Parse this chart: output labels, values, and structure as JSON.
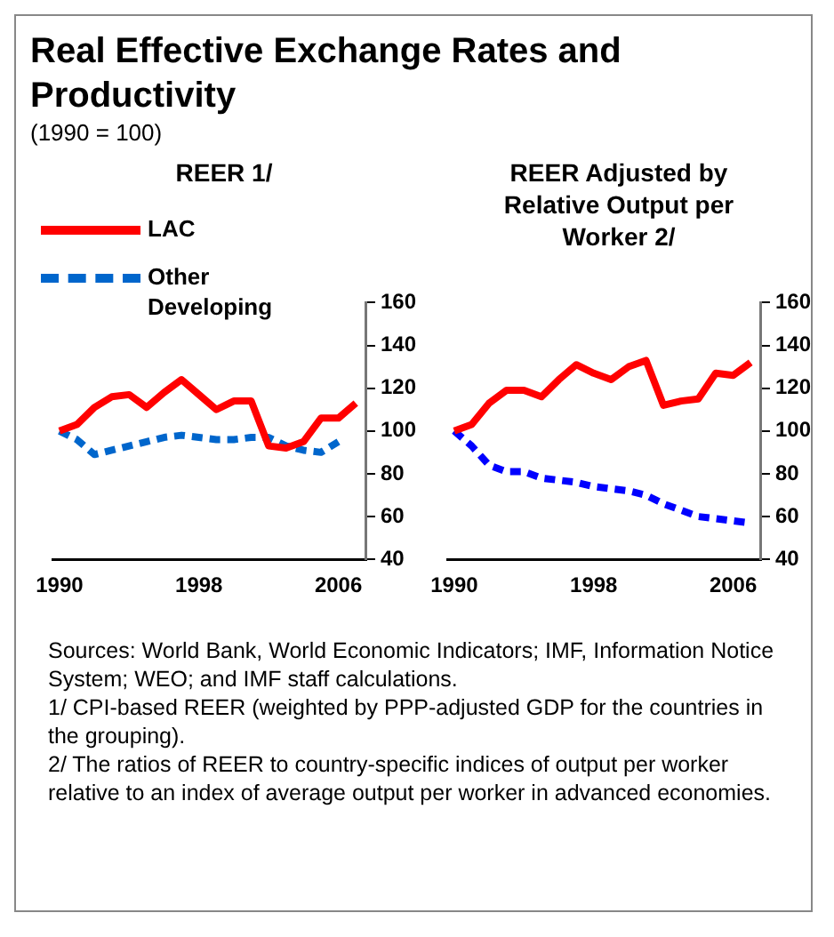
{
  "chart_data": [
    {
      "type": "other",
      "title": "Real Effective Exchange Rates and Productivity",
      "subtitle": "(1990 = 100)",
      "annotations": [
        "Sources: World Bank, World Economic Indicators; IMF, Information Notice System; WEO; and IMF staff calculations.",
        "1/ CPI-based REER (weighted by PPP-adjusted GDP for the countries in the grouping).",
        "2/ The ratios of REER to country-specific indices of output per worker relative to an index of average output per worker in advanced economies."
      ]
    },
    {
      "type": "line",
      "title": "REER 1/",
      "x": [
        1990,
        1991,
        1992,
        1993,
        1994,
        1995,
        1996,
        1997,
        1998,
        1999,
        2000,
        2001,
        2002,
        2003,
        2004,
        2005,
        2006,
        2007
      ],
      "series": [
        {
          "name": "LAC",
          "color": "#ff0000",
          "line_style": "solid",
          "values": [
            100,
            103,
            111,
            116,
            117,
            111,
            118,
            124,
            117,
            110,
            114,
            114,
            93,
            92,
            95,
            106,
            106,
            113
          ]
        },
        {
          "name": "Other Developing",
          "color": "#0066cc",
          "line_style": "dashed",
          "values": [
            100,
            96,
            89,
            91,
            93,
            95,
            97,
            98,
            97,
            96,
            96,
            97,
            97,
            93,
            91,
            90,
            95,
            null
          ]
        }
      ],
      "xlim": [
        1989.6,
        2007.6
      ],
      "xticks": [
        1990,
        1998,
        2006
      ],
      "ylim": [
        40,
        160
      ],
      "yticks": [
        40,
        60,
        80,
        100,
        120,
        140,
        160
      ],
      "grid": false,
      "legend": "top left",
      "marker": "none"
    },
    {
      "type": "line",
      "title": "REER Adjusted by Relative Output per Worker 2/",
      "x": [
        1990,
        1991,
        1992,
        1993,
        1994,
        1995,
        1996,
        1997,
        1998,
        1999,
        2000,
        2001,
        2002,
        2003,
        2004,
        2005,
        2006,
        2007
      ],
      "series": [
        {
          "color": "#ff0000",
          "line_style": "solid",
          "values": [
            100,
            103,
            113,
            119,
            119,
            116,
            124,
            131,
            127,
            124,
            130,
            133,
            112,
            114,
            115,
            127,
            126,
            132
          ]
        },
        {
          "color": "#0000ff",
          "line_style": "dashed",
          "values": [
            100,
            93,
            84,
            81,
            81,
            78,
            77,
            76,
            74,
            73,
            72,
            70,
            66,
            63,
            60,
            59,
            58,
            57
          ]
        }
      ],
      "xlim": [
        1989.6,
        2007.6
      ],
      "xticks": [
        1990,
        1998,
        2006
      ],
      "ylim": [
        40,
        160
      ],
      "yticks": [
        40,
        60,
        80,
        100,
        120,
        140,
        160
      ],
      "grid": false,
      "marker": "none"
    }
  ]
}
